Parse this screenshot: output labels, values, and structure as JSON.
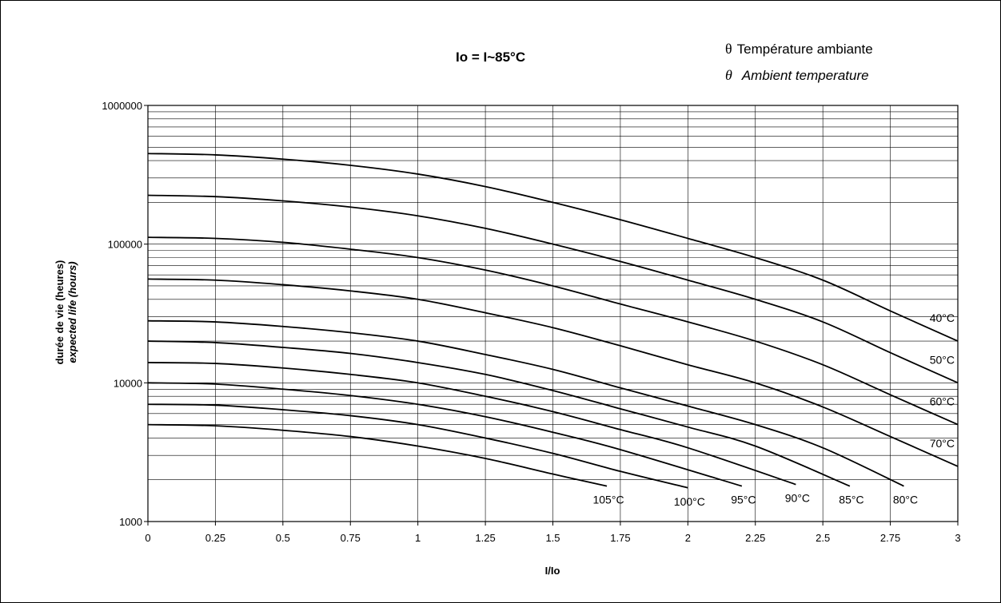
{
  "header": {
    "title": "Io = I~85°C",
    "legend_symbol": "θ",
    "legend_fr": "Température ambiante",
    "legend_en": "Ambient temperature"
  },
  "chart_data": {
    "type": "line",
    "title": "Io = I~85°C",
    "xlabel": "I/Io",
    "ylabel": "durée de vie (heures)",
    "ylabel_en": "expected life (hours)",
    "xlim": [
      0,
      3
    ],
    "ylim": [
      1000,
      1000000
    ],
    "yscale": "log",
    "grid": true,
    "x_ticks": [
      "0",
      "0.25",
      "0.5",
      "0.75",
      "1",
      "1.25",
      "1.5",
      "1.75",
      "2",
      "2.25",
      "2.5",
      "2.75",
      "3"
    ],
    "y_ticks": [
      "1000",
      "10000",
      "100000",
      "1000000"
    ],
    "legend": "top-right",
    "series": [
      {
        "name": "40°C",
        "x": [
          0,
          0.25,
          0.5,
          0.75,
          1,
          1.25,
          1.5,
          1.75,
          2,
          2.25,
          2.5,
          2.75,
          3
        ],
        "y": [
          450000,
          440000,
          410000,
          370000,
          320000,
          260000,
          200000,
          150000,
          110000,
          80000,
          55000,
          33000,
          20000
        ]
      },
      {
        "name": "50°C",
        "x": [
          0,
          0.25,
          0.5,
          0.75,
          1,
          1.25,
          1.5,
          1.75,
          2,
          2.25,
          2.5,
          2.75,
          3
        ],
        "y": [
          225000,
          220000,
          205000,
          185000,
          160000,
          130000,
          100000,
          75000,
          55000,
          40000,
          27500,
          16500,
          10000
        ]
      },
      {
        "name": "60°C",
        "x": [
          0,
          0.25,
          0.5,
          0.75,
          1,
          1.25,
          1.5,
          1.75,
          2,
          2.25,
          2.5,
          2.75,
          3
        ],
        "y": [
          112000,
          110000,
          103000,
          92000,
          80000,
          65000,
          50000,
          37000,
          27500,
          20000,
          13500,
          8200,
          5000
        ]
      },
      {
        "name": "70°C",
        "x": [
          0,
          0.25,
          0.5,
          0.75,
          1,
          1.25,
          1.5,
          1.75,
          2,
          2.25,
          2.5,
          2.75,
          3
        ],
        "y": [
          56000,
          55000,
          51000,
          46000,
          40000,
          32000,
          25000,
          18500,
          13500,
          10000,
          6700,
          4100,
          2500
        ]
      },
      {
        "name": "80°C",
        "x": [
          0,
          0.25,
          0.5,
          0.75,
          1,
          1.25,
          1.5,
          1.75,
          2,
          2.25,
          2.5,
          2.8
        ],
        "y": [
          28000,
          27500,
          25500,
          23000,
          20000,
          16000,
          12500,
          9200,
          6800,
          5000,
          3400,
          1800
        ]
      },
      {
        "name": "85°C",
        "x": [
          0,
          0.25,
          0.5,
          0.75,
          1,
          1.25,
          1.5,
          1.75,
          2,
          2.25,
          2.6
        ],
        "y": [
          20000,
          19500,
          18000,
          16300,
          14000,
          11500,
          8800,
          6500,
          4800,
          3500,
          1800
        ]
      },
      {
        "name": "90°C",
        "x": [
          0,
          0.25,
          0.5,
          0.75,
          1,
          1.25,
          1.5,
          1.75,
          2,
          2.4
        ],
        "y": [
          14000,
          13800,
          12800,
          11500,
          10000,
          8000,
          6200,
          4600,
          3400,
          1850
        ]
      },
      {
        "name": "95°C",
        "x": [
          0,
          0.25,
          0.5,
          0.75,
          1,
          1.25,
          1.5,
          1.75,
          2.2
        ],
        "y": [
          10000,
          9800,
          9000,
          8100,
          7000,
          5700,
          4400,
          3300,
          1800
        ]
      },
      {
        "name": "100°C",
        "x": [
          0,
          0.25,
          0.5,
          0.75,
          1,
          1.25,
          1.5,
          1.75,
          2
        ],
        "y": [
          7000,
          6900,
          6400,
          5800,
          5000,
          4000,
          3100,
          2300,
          1750
        ]
      },
      {
        "name": "105°C",
        "x": [
          0,
          0.25,
          0.5,
          0.75,
          1,
          1.25,
          1.5,
          1.7
        ],
        "y": [
          5000,
          4900,
          4550,
          4100,
          3500,
          2850,
          2200,
          1800
        ]
      }
    ]
  },
  "colors": {
    "line": "#000000",
    "grid": "#000000",
    "background": "#ffffff"
  }
}
